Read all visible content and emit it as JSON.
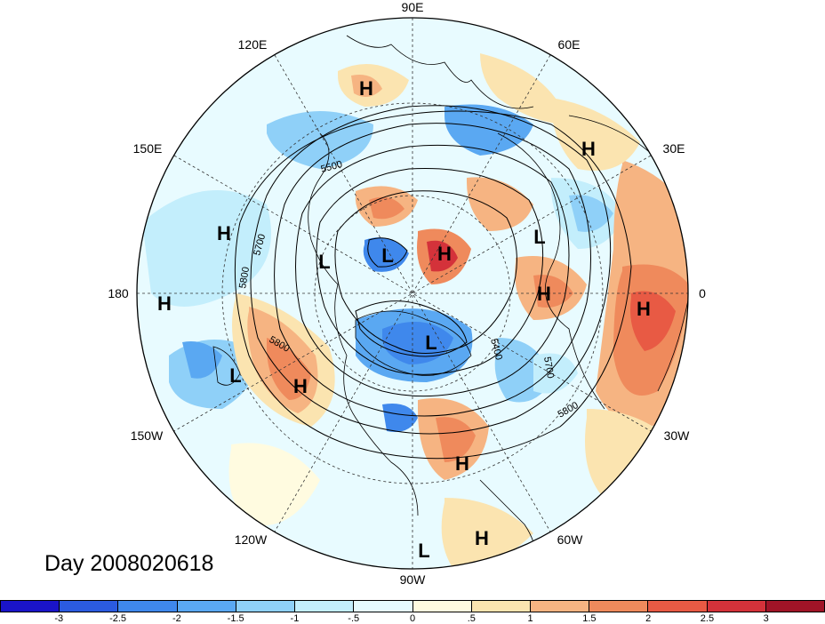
{
  "title": "Day 2008020618",
  "longitude_labels": {
    "lon_90e": "90E",
    "lon_60e": "60E",
    "lon_30e": "30E",
    "lon_0": "0",
    "lon_30w": "30W",
    "lon_60w": "60W",
    "lon_90w": "90W",
    "lon_120w": "120W",
    "lon_150w": "150W",
    "lon_180": "180",
    "lon_150e": "150E",
    "lon_120e": "120E"
  },
  "pressure_centers": [
    {
      "id": "h1",
      "label": "H"
    },
    {
      "id": "h2",
      "label": "H"
    },
    {
      "id": "h3",
      "label": "H"
    },
    {
      "id": "h4",
      "label": "H"
    },
    {
      "id": "h5",
      "label": "H"
    },
    {
      "id": "h6",
      "label": "H"
    },
    {
      "id": "h7",
      "label": "H"
    },
    {
      "id": "h8",
      "label": "H"
    },
    {
      "id": "h9",
      "label": "H"
    },
    {
      "id": "h10",
      "label": "H"
    },
    {
      "id": "h11",
      "label": "H"
    },
    {
      "id": "l1",
      "label": "L"
    },
    {
      "id": "l2",
      "label": "L"
    },
    {
      "id": "l3",
      "label": "L"
    },
    {
      "id": "l4",
      "label": "L"
    },
    {
      "id": "l5",
      "label": "L"
    },
    {
      "id": "l6",
      "label": "L"
    }
  ],
  "contour_labels": [
    "5500",
    "5700",
    "5800",
    "5800",
    "5400",
    "5700",
    "5800"
  ],
  "colorbar": {
    "colors": [
      "#1a14c8",
      "#2b5be0",
      "#3f88ec",
      "#5aa8f2",
      "#8fd0f8",
      "#c3eefc",
      "#e6fbff",
      "#fffbe0",
      "#fbe4b0",
      "#f6b482",
      "#ef8a5c",
      "#e85a44",
      "#d4323a",
      "#a01427"
    ],
    "labels": [
      "-3",
      "-2.5",
      "-2",
      "-1.5",
      "-1",
      "-.5",
      "0",
      ".5",
      "1",
      "1.5",
      "2",
      "2.5",
      "3"
    ]
  }
}
